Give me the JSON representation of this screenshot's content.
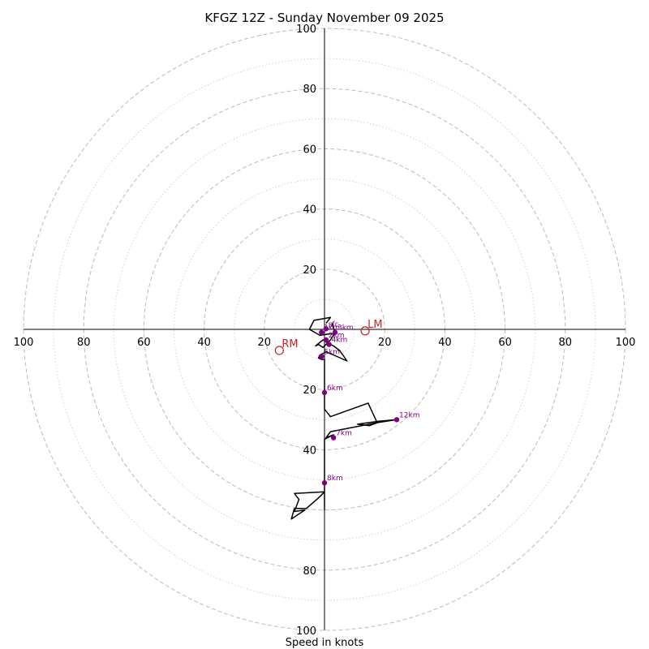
{
  "chart_data": {
    "type": "hodograph",
    "title": "KFGZ 12Z - Sunday November 09 2025",
    "xlabel": "Speed in knots",
    "ylabel": "",
    "range_kt": 100,
    "ring_step_major": 20,
    "ring_step_minor": 10,
    "tick_labels": {
      "x_left": [
        "100",
        "80",
        "60",
        "40",
        "20"
      ],
      "x_right": [
        "20",
        "40",
        "60",
        "80",
        "100"
      ],
      "y_top": [
        "100",
        "80",
        "60",
        "40",
        "20"
      ],
      "y_bottom": [
        "20",
        "40",
        "80",
        "100"
      ]
    },
    "colors": {
      "trace": "#000000",
      "height_marker": "#800080",
      "storm_motion": "#cc2222",
      "ring": "#bbbbbb"
    },
    "hodograph_trace_uv": [
      [
        0.5,
        2.0
      ],
      [
        2.0,
        4.0
      ],
      [
        -3.5,
        3.0
      ],
      [
        -5.0,
        0.0
      ],
      [
        -1.5,
        -2.0
      ],
      [
        1.5,
        -1.5
      ],
      [
        3.5,
        -1.5
      ],
      [
        2.5,
        2.0
      ],
      [
        3.0,
        0.5
      ],
      [
        3.5,
        -1.0
      ],
      [
        2.0,
        -3.5
      ],
      [
        -0.5,
        -6.0
      ],
      [
        -2.0,
        -5.0
      ],
      [
        -3.0,
        -5.5
      ],
      [
        -0.5,
        -3.5
      ],
      [
        1.0,
        -4.5
      ],
      [
        3.0,
        -5.5
      ],
      [
        5.0,
        -7.0
      ],
      [
        7.5,
        -10.5
      ],
      [
        3.0,
        -8.5
      ],
      [
        0.5,
        -7.5
      ],
      [
        -1.5,
        -8.5
      ],
      [
        -2.0,
        -9.5
      ],
      [
        -1.0,
        -10.0
      ],
      [
        0.0,
        -10.0
      ],
      [
        0.0,
        -14.0
      ],
      [
        0.0,
        -18.0
      ],
      [
        0.0,
        -21.0
      ],
      [
        0.0,
        -25.0
      ],
      [
        0.0,
        -26.5
      ],
      [
        2.0,
        -29.0
      ],
      [
        14.5,
        -24.5
      ],
      [
        17.5,
        -31.0
      ],
      [
        15.0,
        -32.0
      ],
      [
        11.0,
        -31.5
      ],
      [
        18.0,
        -30.5
      ],
      [
        24.0,
        -30.0
      ],
      [
        17.5,
        -31.0
      ],
      [
        2.0,
        -34.0
      ],
      [
        0.5,
        -36.0
      ],
      [
        3.0,
        -35.0
      ],
      [
        0.0,
        -36.5
      ],
      [
        0.0,
        -40.0
      ],
      [
        0.0,
        -45.0
      ],
      [
        0.0,
        -51.0
      ],
      [
        0.0,
        -54.0
      ],
      [
        -10.0,
        -54.5
      ],
      [
        -8.5,
        -56.5
      ],
      [
        -10.0,
        -60.5
      ],
      [
        -6.5,
        -60.0
      ],
      [
        -11.0,
        -63.0
      ],
      [
        -10.0,
        -59.5
      ],
      [
        -6.0,
        -59.5
      ],
      [
        -2.0,
        -56.0
      ],
      [
        0.0,
        -54.0
      ],
      [
        0.0,
        -60.0
      ]
    ],
    "height_markers": [
      {
        "label": "sfc",
        "u": 0.5,
        "v": 0.2
      },
      {
        "label": "1km",
        "u": -1.0,
        "v": -1.0
      },
      {
        "label": "2km",
        "u": 0.5,
        "v": -3.5
      },
      {
        "label": "3km",
        "u": 3.5,
        "v": -1.0
      },
      {
        "label": "4km",
        "u": 1.5,
        "v": -5.0
      },
      {
        "label": "5km",
        "u": -1.0,
        "v": -9.0
      },
      {
        "label": "6km",
        "u": 0.0,
        "v": -21.0
      },
      {
        "label": "7km",
        "u": 3.0,
        "v": -36.0
      },
      {
        "label": "8km",
        "u": 0.0,
        "v": -51.0
      },
      {
        "label": "12km",
        "u": 24.0,
        "v": -30.0
      }
    ],
    "storm_motion": [
      {
        "label": "LM",
        "u": 13.5,
        "v": -0.5
      },
      {
        "label": "RM",
        "u": -15.0,
        "v": -7.0
      }
    ]
  }
}
